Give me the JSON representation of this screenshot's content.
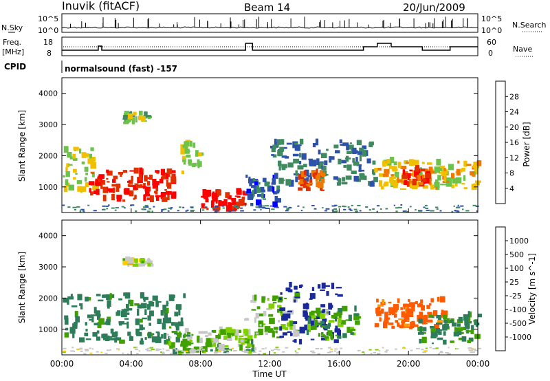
{
  "header": {
    "station": "Inuvik (fitACF)",
    "beam": "Beam 14",
    "date": "20/Jun/2009"
  },
  "strip1": {
    "left_label": "N.Sky",
    "right_label": "N.Search",
    "tick_top": "10^5",
    "tick_bottom": "10^0"
  },
  "strip2": {
    "left_label_1": "Freq.",
    "left_label_2": "[MHz]",
    "right_label": "Nave",
    "tick_top_left": "18",
    "tick_bottom_left": "8",
    "tick_top_right": "60",
    "tick_bottom_right": "0"
  },
  "cpid": {
    "label": "CPID",
    "value": "normalsound (fast) -157"
  },
  "x_axis": {
    "label": "Time UT",
    "ticks": [
      "00:00",
      "04:00",
      "08:00",
      "12:00",
      "16:00",
      "20:00",
      "00:00"
    ]
  },
  "colors": {
    "power": [
      "#0000ff",
      "#2e52a8",
      "#3f8a5f",
      "#6cc24a",
      "#f0c000",
      "#f07800",
      "#e03000",
      "#ff0000"
    ],
    "velocity": [
      "#ff0000",
      "#ff5a00",
      "#ff9a00",
      "#ffcc00",
      "#c8c8c8",
      "#7fd000",
      "#40a000",
      "#2e7d5a",
      "#2e52a8",
      "#1a2a9a"
    ]
  },
  "chart_data": [
    {
      "type": "heatmap",
      "ylabel": "Slant Range [km]",
      "xlabel": "",
      "ylim": [
        180,
        4500
      ],
      "yticks": [
        "1000",
        "2000",
        "3000",
        "4000"
      ],
      "colorbar_label": "Power [dB]",
      "colorbar_ticks": [
        "4",
        "8",
        "12",
        "16",
        "20",
        "24",
        "28"
      ],
      "regions": [
        {
          "t0": 0.0,
          "t1": 2.0,
          "r0": 800,
          "r1": 2200,
          "level": 16
        },
        {
          "t0": 1.5,
          "t1": 6.5,
          "r0": 500,
          "r1": 1500,
          "level": 28
        },
        {
          "t0": 3.5,
          "t1": 5.0,
          "r0": 3000,
          "r1": 3300,
          "level": 14
        },
        {
          "t0": 6.8,
          "t1": 8.0,
          "r0": 1200,
          "r1": 2300,
          "level": 16
        },
        {
          "t0": 8.0,
          "t1": 10.5,
          "r0": 200,
          "r1": 800,
          "level": 30
        },
        {
          "t0": 10.5,
          "t1": 12.5,
          "r0": 300,
          "r1": 1300,
          "level": 6
        },
        {
          "t0": 12.0,
          "t1": 18.0,
          "r0": 1000,
          "r1": 2400,
          "level": 8
        },
        {
          "t0": 13.5,
          "t1": 15.0,
          "r0": 800,
          "r1": 1400,
          "level": 24
        },
        {
          "t0": 18.0,
          "t1": 24.0,
          "r0": 900,
          "r1": 1800,
          "level": 18
        },
        {
          "t0": 19.5,
          "t1": 21.0,
          "r0": 1000,
          "r1": 1500,
          "level": 26
        }
      ]
    },
    {
      "type": "heatmap",
      "ylabel": "Slant Range [km]",
      "xlabel": "Time UT",
      "ylim": [
        180,
        4500
      ],
      "yticks": [
        "1000",
        "2000",
        "3000",
        "4000"
      ],
      "colorbar_label": "Velocity [m s^-1]",
      "colorbar_ticks": [
        "1000",
        "500",
        "100",
        "25",
        "-25",
        "-100",
        "-500",
        "-1000"
      ],
      "regions": [
        {
          "t0": 0.0,
          "t1": 7.0,
          "r0": 500,
          "r1": 2100,
          "level": 150
        },
        {
          "t0": 6.0,
          "t1": 11.0,
          "r0": 200,
          "r1": 900,
          "level": 60
        },
        {
          "t0": 3.5,
          "t1": 5.0,
          "r0": 3000,
          "r1": 3200,
          "level": 0
        },
        {
          "t0": 10.5,
          "t1": 13.5,
          "r0": 700,
          "r1": 2000,
          "level": 40
        },
        {
          "t0": 12.5,
          "t1": 16.0,
          "r0": 500,
          "r1": 2400,
          "level": 600
        },
        {
          "t0": 14.0,
          "t1": 17.0,
          "r0": 600,
          "r1": 1600,
          "level": 80
        },
        {
          "t0": 18.0,
          "t1": 22.0,
          "r0": 1000,
          "r1": 1900,
          "level": -150
        },
        {
          "t0": 20.5,
          "t1": 24.0,
          "r0": 500,
          "r1": 1400,
          "level": 120
        }
      ]
    }
  ]
}
